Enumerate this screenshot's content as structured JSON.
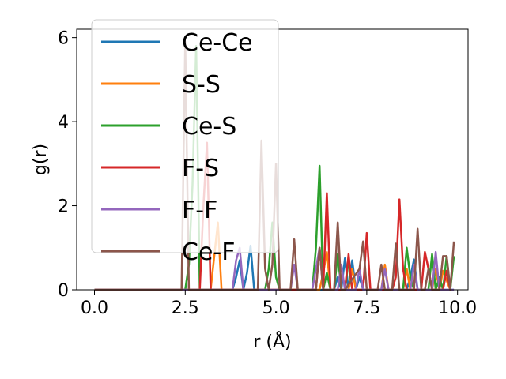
{
  "chart_data": {
    "type": "line",
    "title": "",
    "xlabel": "r (Å)",
    "ylabel": "g(r)",
    "xlim": [
      -0.49,
      10.29
    ],
    "ylim": [
      0,
      6.2
    ],
    "xticks": [
      0.0,
      2.5,
      5.0,
      7.5,
      10.0
    ],
    "xtick_labels": [
      "0.0",
      "2.5",
      "5.0",
      "7.5",
      "10.0"
    ],
    "yticks": [
      0,
      2,
      4,
      6
    ],
    "ytick_labels": [
      "0",
      "2",
      "4",
      "6"
    ],
    "grid": false,
    "legend_position": "upper-left",
    "series": [
      {
        "name": "Ce-Ce",
        "color": "#1f77b4",
        "x": [
          0.0,
          3.7,
          3.8,
          3.9,
          4.0,
          4.1,
          4.2,
          4.3,
          4.4,
          4.5,
          4.6,
          4.7,
          4.8,
          4.9,
          5.0,
          5.5,
          6.6,
          6.7,
          6.8,
          6.9,
          7.0,
          7.1,
          7.2,
          7.3,
          7.4,
          8.6,
          8.7,
          8.8,
          8.9,
          9.0,
          9.8,
          9.9
        ],
        "y": [
          0.0,
          0.0,
          0.0,
          0.3,
          0.7,
          0.0,
          0.4,
          1.05,
          0.0,
          0.0,
          0.0,
          0.0,
          0.0,
          0.0,
          0.0,
          0.0,
          0.0,
          0.3,
          0.0,
          0.75,
          0.0,
          0.7,
          0.0,
          0.3,
          0.0,
          0.0,
          0.3,
          0.72,
          0.0,
          0.0,
          0.0,
          0.0
        ]
      },
      {
        "name": "S-S",
        "color": "#ff7f0e",
        "x": [
          0.0,
          3.2,
          3.3,
          3.4,
          3.5,
          6.2,
          6.3,
          6.4,
          6.5,
          6.6,
          7.0,
          7.1,
          7.2,
          7.9,
          8.0,
          8.1,
          8.2,
          8.5,
          8.6,
          8.7,
          9.3,
          9.4,
          9.5,
          9.6,
          9.8
        ],
        "y": [
          0.0,
          0.0,
          0.8,
          1.6,
          0.0,
          0.0,
          0.4,
          0.9,
          0.0,
          0.0,
          0.0,
          0.5,
          0.0,
          0.0,
          0.6,
          0.0,
          0.0,
          0.0,
          0.5,
          0.0,
          0.0,
          0.5,
          0.0,
          0.45,
          0.0
        ]
      },
      {
        "name": "Ce-S",
        "color": "#2ca02c",
        "x": [
          0.0,
          2.5,
          2.6,
          2.7,
          2.8,
          2.9,
          4.7,
          4.8,
          4.9,
          5.0,
          5.1,
          6.0,
          6.1,
          6.2,
          6.3,
          6.4,
          6.5,
          6.6,
          6.7,
          6.8,
          6.9,
          7.0,
          7.1,
          7.3,
          8.5,
          8.6,
          8.7,
          8.8,
          9.2,
          9.3,
          9.4,
          9.5,
          9.6,
          9.7,
          9.8,
          9.9
        ],
        "y": [
          0.0,
          0.0,
          0.6,
          2.5,
          5.8,
          0.0,
          0.0,
          0.5,
          1.6,
          0.3,
          0.0,
          0.0,
          1.0,
          2.95,
          0.0,
          0.4,
          0.0,
          0.0,
          0.85,
          0.0,
          0.0,
          0.7,
          0.0,
          0.0,
          0.0,
          1.0,
          0.3,
          0.0,
          0.0,
          0.85,
          0.0,
          0.3,
          0.0,
          0.8,
          0.0,
          0.8
        ]
      },
      {
        "name": "F-S",
        "color": "#d62728",
        "x": [
          0.0,
          2.9,
          3.0,
          3.1,
          3.2,
          6.0,
          6.1,
          6.2,
          6.3,
          6.4,
          6.5,
          6.9,
          7.0,
          7.1,
          7.4,
          7.5,
          7.6,
          8.2,
          8.3,
          8.4,
          8.5,
          8.6,
          9.0,
          9.1,
          9.2,
          9.3,
          9.6,
          9.7,
          9.8
        ],
        "y": [
          0.0,
          0.0,
          2.0,
          3.5,
          0.0,
          0.0,
          0.0,
          1.0,
          0.0,
          2.3,
          0.0,
          0.0,
          0.85,
          0.0,
          0.0,
          1.35,
          0.0,
          0.0,
          0.3,
          2.15,
          0.5,
          0.0,
          0.0,
          0.9,
          0.5,
          0.0,
          0.0,
          0.45,
          0.0
        ]
      },
      {
        "name": "F-F",
        "color": "#9467bd",
        "x": [
          0.0,
          3.8,
          3.9,
          4.0,
          4.1,
          4.2,
          5.4,
          5.5,
          5.6,
          6.0,
          6.1,
          6.2,
          6.3,
          6.7,
          6.8,
          6.9,
          7.2,
          7.3,
          7.4,
          7.9,
          8.0,
          8.1,
          8.7,
          8.8,
          8.9,
          9.3,
          9.4,
          9.5,
          9.9
        ],
        "y": [
          0.0,
          0.0,
          0.7,
          1.0,
          0.0,
          0.0,
          0.0,
          0.6,
          0.0,
          0.0,
          0.5,
          1.0,
          0.0,
          0.0,
          0.6,
          0.0,
          0.0,
          0.5,
          0.0,
          0.0,
          0.5,
          0.0,
          0.0,
          0.6,
          0.0,
          0.0,
          0.9,
          0.0,
          0.0
        ]
      },
      {
        "name": "Ce-F",
        "color": "#8c564b",
        "x": [
          0.0,
          2.3,
          2.4,
          2.5,
          2.6,
          4.5,
          4.6,
          4.7,
          4.8,
          4.9,
          5.0,
          5.1,
          5.4,
          5.5,
          5.6,
          6.1,
          6.2,
          6.3,
          6.6,
          6.7,
          6.8,
          6.9,
          7.3,
          7.4,
          7.5,
          7.8,
          7.9,
          8.0,
          8.2,
          8.3,
          8.4,
          8.5,
          8.8,
          8.9,
          9.0,
          9.1,
          9.2,
          9.3,
          9.5,
          9.6,
          9.7,
          9.8,
          9.9
        ],
        "y": [
          0.0,
          0.0,
          0.0,
          5.9,
          0.0,
          0.0,
          3.55,
          0.5,
          0.0,
          0.6,
          3.0,
          0.0,
          0.0,
          1.2,
          0.0,
          0.0,
          1.0,
          0.0,
          0.0,
          1.6,
          0.0,
          0.0,
          0.5,
          1.15,
          0.0,
          0.0,
          0.6,
          0.0,
          0.0,
          1.1,
          0.0,
          0.0,
          0.0,
          1.45,
          0.0,
          0.0,
          0.5,
          0.0,
          0.0,
          0.8,
          0.8,
          0.0,
          1.15
        ]
      }
    ]
  }
}
